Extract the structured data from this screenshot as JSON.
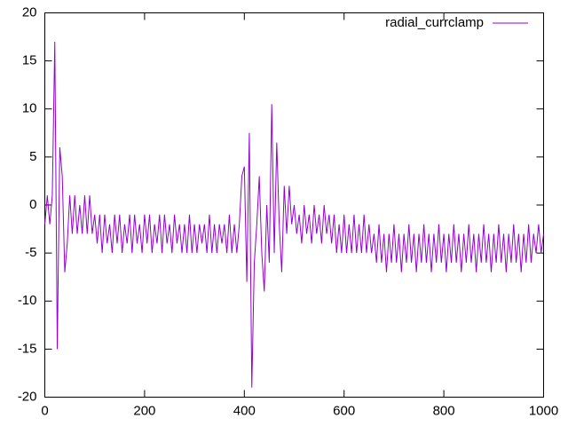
{
  "chart_data": {
    "type": "line",
    "x": [
      0,
      5,
      10,
      15,
      20,
      25,
      30,
      35,
      40,
      45,
      50,
      55,
      60,
      65,
      70,
      75,
      80,
      85,
      90,
      95,
      100,
      105,
      110,
      115,
      120,
      125,
      130,
      135,
      140,
      145,
      150,
      155,
      160,
      165,
      170,
      175,
      180,
      185,
      190,
      195,
      200,
      205,
      210,
      215,
      220,
      225,
      230,
      235,
      240,
      245,
      250,
      255,
      260,
      265,
      270,
      275,
      280,
      285,
      290,
      295,
      300,
      305,
      310,
      315,
      320,
      325,
      330,
      335,
      340,
      345,
      350,
      355,
      360,
      365,
      370,
      375,
      380,
      385,
      390,
      395,
      400,
      405,
      410,
      415,
      420,
      425,
      430,
      435,
      440,
      445,
      450,
      455,
      460,
      465,
      470,
      475,
      480,
      485,
      490,
      495,
      500,
      505,
      510,
      515,
      520,
      525,
      530,
      535,
      540,
      545,
      550,
      555,
      560,
      565,
      570,
      575,
      580,
      585,
      590,
      595,
      600,
      605,
      610,
      615,
      620,
      625,
      630,
      635,
      640,
      645,
      650,
      655,
      660,
      665,
      670,
      675,
      680,
      685,
      690,
      695,
      700,
      705,
      710,
      715,
      720,
      725,
      730,
      735,
      740,
      745,
      750,
      755,
      760,
      765,
      770,
      775,
      780,
      785,
      790,
      795,
      800,
      805,
      810,
      815,
      820,
      825,
      830,
      835,
      840,
      845,
      850,
      855,
      860,
      865,
      870,
      875,
      880,
      885,
      890,
      895,
      900,
      905,
      910,
      915,
      920,
      925,
      930,
      935,
      940,
      945,
      950,
      955,
      960,
      965,
      970,
      975,
      980,
      985,
      990,
      995,
      1000
    ],
    "series": [
      {
        "name": "radial_currclamp",
        "color": "#9400d3",
        "values": [
          -2,
          1,
          -2,
          1,
          17,
          -15,
          6,
          3,
          -7,
          -4,
          1,
          -3,
          1,
          -3,
          0,
          -3,
          1,
          -3,
          1,
          -3,
          -1,
          -4,
          -1,
          -5,
          -1,
          -4,
          -2,
          -5,
          -1,
          -4,
          -1,
          -5,
          -2,
          -4,
          -1,
          -5,
          -1,
          -4,
          -2,
          -5,
          -1,
          -4,
          -1,
          -5,
          -2,
          -4,
          -1,
          -5,
          -1,
          -4,
          -2,
          -5,
          -1,
          -4,
          -2,
          -5,
          -2,
          -5,
          -1,
          -5,
          -2,
          -5,
          -2,
          -4,
          -2,
          -5,
          -1,
          -5,
          -2,
          -5,
          -2,
          -4,
          -2,
          -5,
          -1,
          -5,
          -2,
          -5,
          -2,
          3,
          4,
          -8,
          7.5,
          -19,
          -6,
          -2,
          3,
          -5,
          -9,
          0,
          -6,
          10.5,
          -5,
          6.5,
          -2,
          -7,
          2,
          -3,
          2,
          -2,
          0,
          -3,
          -1,
          -4,
          0,
          -3,
          -1,
          -4,
          0,
          -3,
          -1,
          -4,
          0,
          -3,
          -1,
          -4,
          -1,
          -5,
          -2,
          -5,
          -1,
          -5,
          -2,
          -5,
          -1,
          -5,
          -2,
          -5,
          -1,
          -5,
          -2,
          -5,
          -3,
          -6,
          -2,
          -6,
          -3,
          -7,
          -3,
          -6,
          -2,
          -6,
          -3,
          -7,
          -3,
          -6,
          -2,
          -6,
          -3,
          -7,
          -3,
          -6,
          -2,
          -6,
          -3,
          -7,
          -3,
          -6,
          -2,
          -6,
          -3,
          -7,
          -3,
          -6,
          -2,
          -6,
          -3,
          -7,
          -3,
          -6,
          -2,
          -6,
          -3,
          -7,
          -3,
          -6,
          -2,
          -6,
          -3,
          -7,
          -3,
          -6,
          -2,
          -6,
          -3,
          -7,
          -3,
          -6,
          -2,
          -6,
          -3,
          -7,
          -3,
          -6,
          -2,
          -6,
          -3,
          -5,
          -2,
          -5,
          -3
        ]
      }
    ],
    "xlim": [
      0,
      1000
    ],
    "xticks": [
      0,
      200,
      400,
      600,
      800,
      1000
    ],
    "ylim": [
      -20,
      20
    ],
    "yticks": [
      -20,
      -15,
      -10,
      -5,
      0,
      5,
      10,
      15,
      20
    ],
    "legend": "top-right"
  }
}
